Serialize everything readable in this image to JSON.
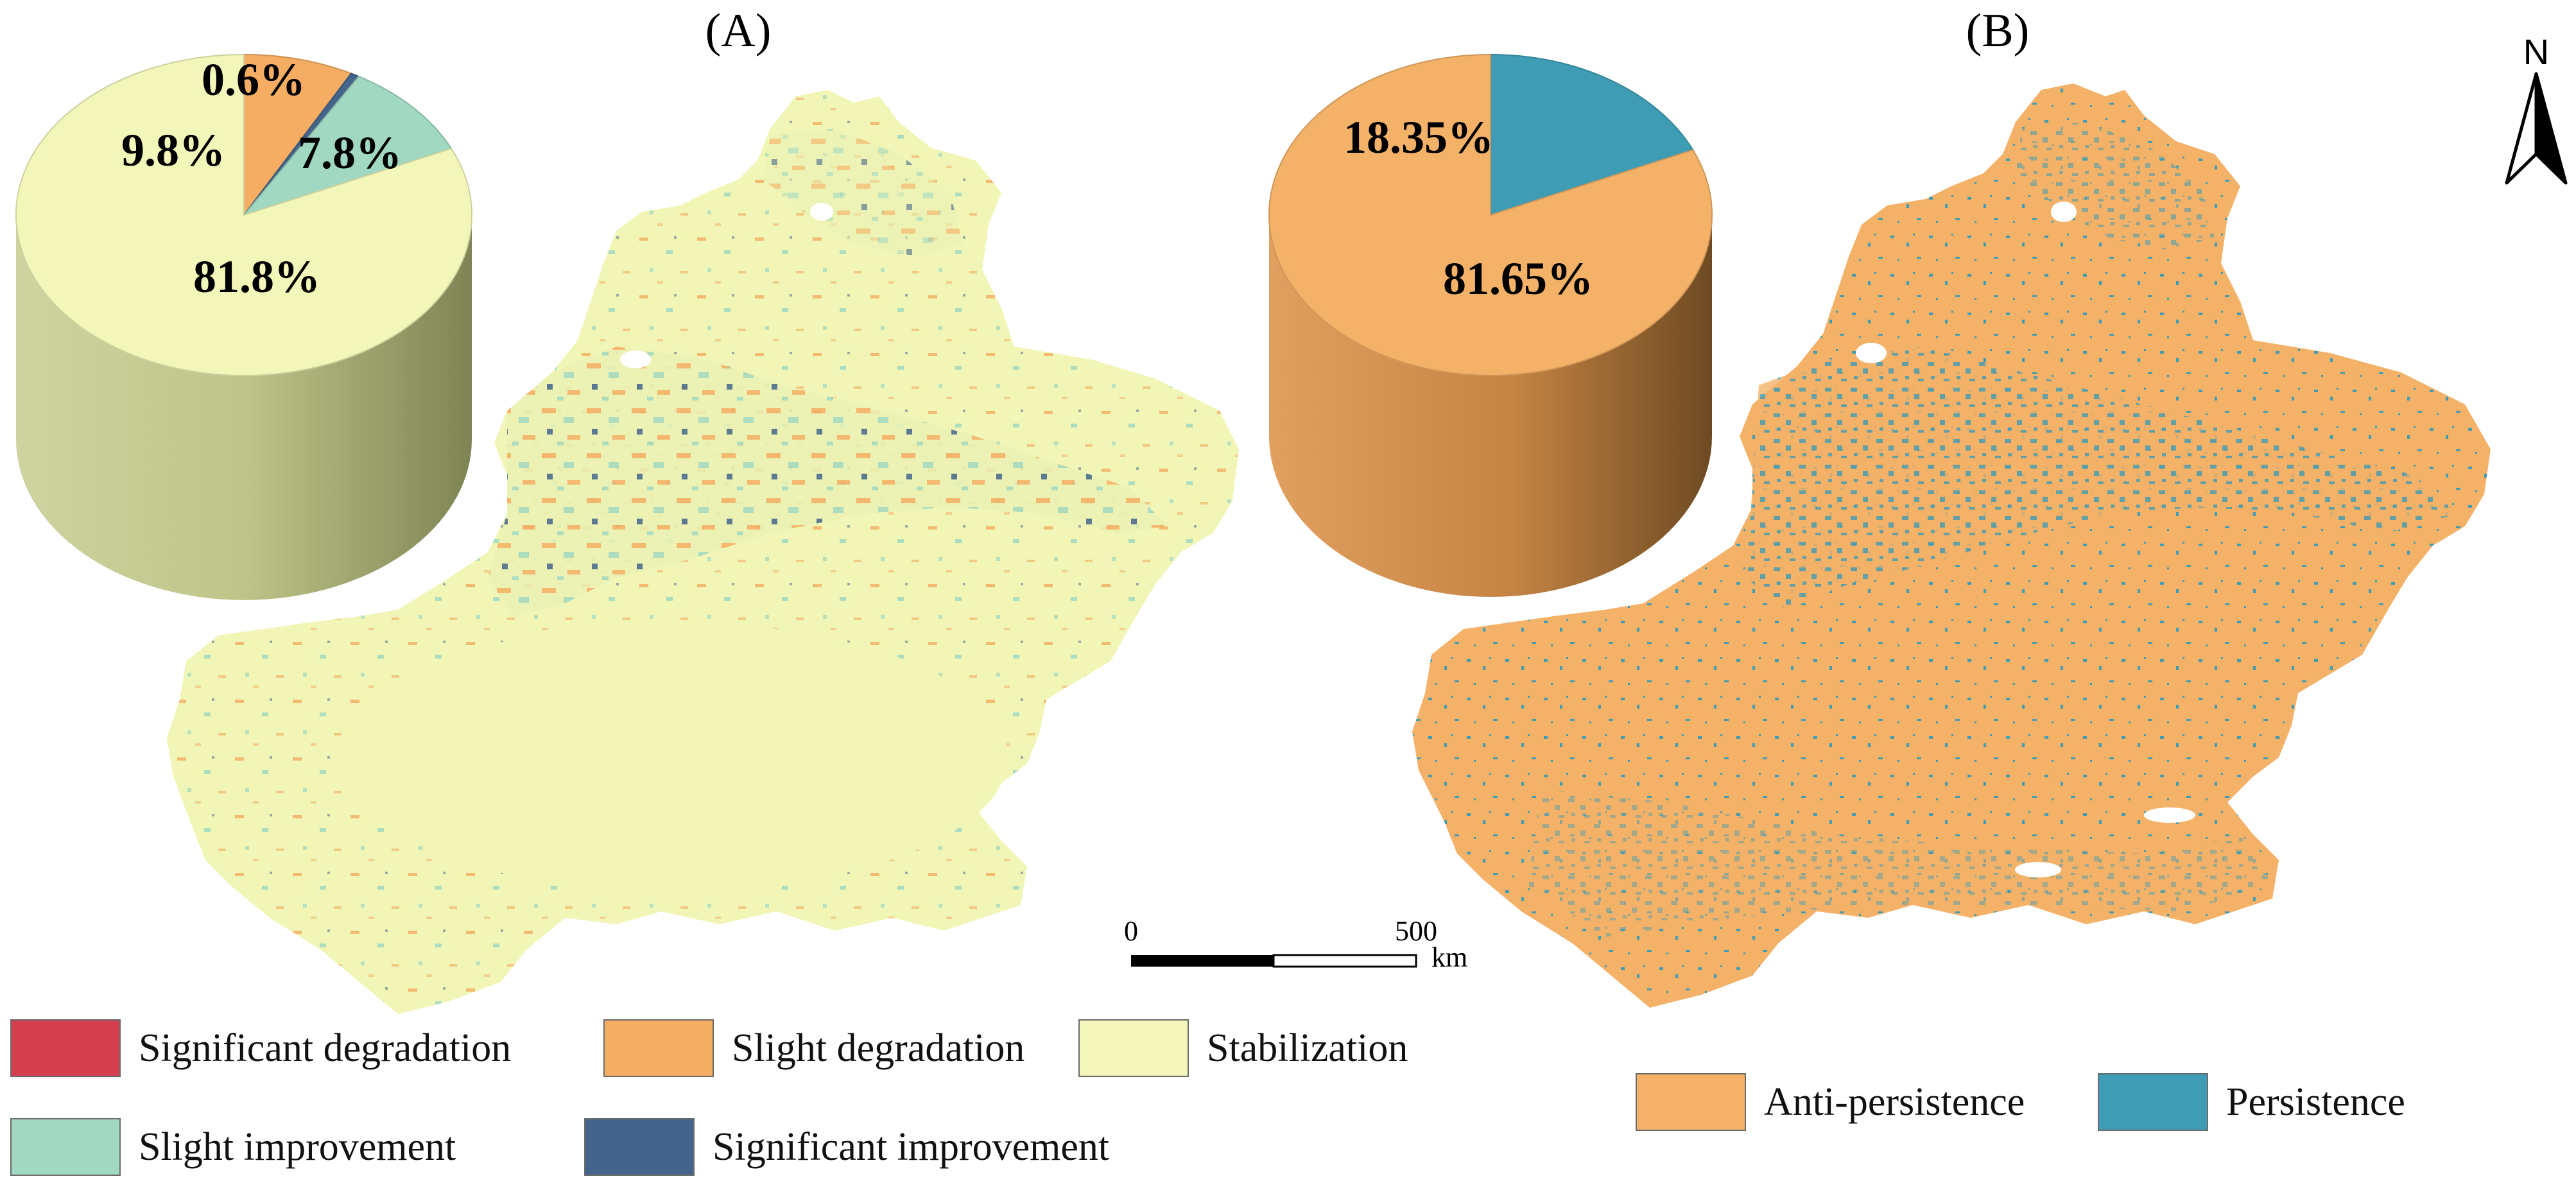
{
  "colors": {
    "significant_degradation": "#d43f4f",
    "slight_degradation": "#f4ad62",
    "stabilization": "#f2f6b9",
    "slight_improvement": "#a1d8c1",
    "significant_improvement": "#44648b",
    "anti_persistence": "#f4b168",
    "persistence": "#3f9cb5"
  },
  "panel_a": {
    "title": "(A)",
    "pie": {
      "slices": [
        {
          "name": "Stabilization",
          "pct": 81.8,
          "label": "81.8%",
          "color": "#f2f6b9"
        },
        {
          "name": "Slight improvement",
          "pct": 9.8,
          "label": "9.8%",
          "color": "#a1d8c1"
        },
        {
          "name": "Significant improvement",
          "pct": 0.6,
          "label": "0.6%",
          "color": "#44648b"
        },
        {
          "name": "Slight degradation",
          "pct": 7.8,
          "label": "7.8%",
          "color": "#f4ad62"
        }
      ]
    }
  },
  "panel_b": {
    "title": "(B)",
    "pie": {
      "slices": [
        {
          "name": "Anti-persistence",
          "pct": 81.65,
          "label": "81.65%",
          "color": "#f4b168"
        },
        {
          "name": "Persistence",
          "pct": 18.35,
          "label": "18.35%",
          "color": "#3f9cb5"
        }
      ]
    }
  },
  "scale_bar": {
    "zero": "0",
    "max": "500",
    "unit": "km"
  },
  "north_arrow": {
    "letter": "N",
    "icon": "north-arrow-icon"
  },
  "legend_a": [
    {
      "label": "Significant degradation",
      "color": "#d43f4f"
    },
    {
      "label": "Slight degradation",
      "color": "#f4ad62"
    },
    {
      "label": "Stabilization",
      "color": "#f2f6b9"
    },
    {
      "label": "Slight improvement",
      "color": "#a1d8c1"
    },
    {
      "label": "Significant improvement",
      "color": "#44648b"
    }
  ],
  "legend_b": [
    {
      "label": "Anti-persistence",
      "color": "#f4b168"
    },
    {
      "label": "Persistence",
      "color": "#3f9cb5"
    }
  ]
}
